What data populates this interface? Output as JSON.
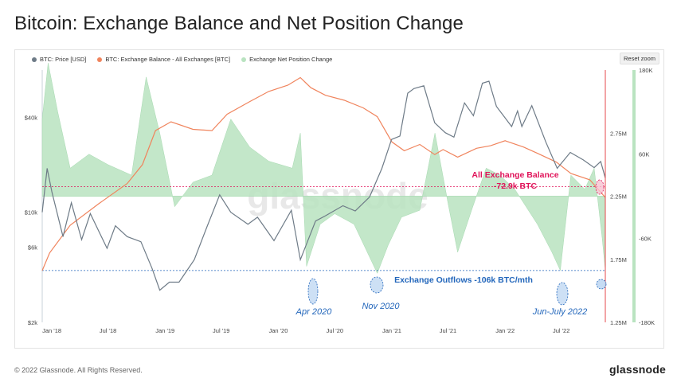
{
  "title": "Bitcoin: Exchange Balance and Net Position Change",
  "reset_zoom_label": "Reset zoom",
  "footer": "© 2022 Glassnode. All Rights Reserved.",
  "logo": "glassnode",
  "watermark": "glassnode",
  "colors": {
    "price": "#6e7b87",
    "balance": "#f0845d",
    "netpos_pos": "#b9e3c0",
    "netpos_neg": "#c9ead0",
    "right_bar": "#b9e3c0",
    "red_line": "#e5484d",
    "balance_ann": "#e0145a",
    "outflow_ann": "#2266bb"
  },
  "chart_data": {
    "type": "line",
    "legend": [
      {
        "name": "BTC: Price [USD]",
        "color": "#6e7b87",
        "style": "dot"
      },
      {
        "name": "BTC: Exchange Balance - All Exchanges [BTC]",
        "color": "#f0845d",
        "style": "dot"
      },
      {
        "name": "Exchange Net Position Change",
        "color": "#b9e3c0",
        "style": "dot"
      }
    ],
    "legend_placement": "top-left",
    "x_ticks": [
      "Jan '18",
      "Jul '18",
      "Jan '19",
      "Jul '19",
      "Jan '20",
      "Jul '20",
      "Jan '21",
      "Jul '21",
      "Jan '22",
      "Jul '22"
    ],
    "x_range": [
      "2017-12-01",
      "2022-11-20"
    ],
    "y_left": {
      "label": "",
      "scale": "log",
      "ticks": [
        "$2k",
        "$6k",
        "$10k",
        "$40k"
      ],
      "tick_values": [
        2000,
        6000,
        10000,
        40000
      ],
      "range": [
        2000,
        80000
      ]
    },
    "y_right1": {
      "label": "",
      "ticks": [
        "1.25M",
        "1.75M",
        "2.25M",
        "2.75M"
      ],
      "tick_values": [
        1250000,
        1750000,
        2250000,
        2750000
      ],
      "range": [
        1250000,
        3250000
      ]
    },
    "y_right2": {
      "label": "",
      "ticks": [
        "-180K",
        "-60K",
        "60K",
        "180K"
      ],
      "tick_values": [
        -180000,
        -60000,
        60000,
        180000
      ],
      "range": [
        -180000,
        180000
      ]
    },
    "grid": false,
    "series": [
      {
        "name": "BTC: Price [USD]",
        "axis": "left",
        "points": [
          [
            "2017-12-01",
            10000
          ],
          [
            "2017-12-17",
            19000
          ],
          [
            "2018-01-01",
            13500
          ],
          [
            "2018-02-06",
            7000
          ],
          [
            "2018-03-05",
            11500
          ],
          [
            "2018-04-07",
            6700
          ],
          [
            "2018-05-05",
            9800
          ],
          [
            "2018-06-28",
            5900
          ],
          [
            "2018-07-25",
            8200
          ],
          [
            "2018-09-01",
            7000
          ],
          [
            "2018-10-15",
            6500
          ],
          [
            "2018-11-20",
            4400
          ],
          [
            "2018-12-15",
            3200
          ],
          [
            "2019-01-15",
            3600
          ],
          [
            "2019-02-15",
            3600
          ],
          [
            "2019-04-05",
            5000
          ],
          [
            "2019-05-15",
            8000
          ],
          [
            "2019-06-26",
            12900
          ],
          [
            "2019-08-01",
            10000
          ],
          [
            "2019-09-25",
            8400
          ],
          [
            "2019-10-26",
            9300
          ],
          [
            "2019-12-18",
            6600
          ],
          [
            "2020-02-12",
            10300
          ],
          [
            "2020-03-12",
            5000
          ],
          [
            "2020-04-30",
            8800
          ],
          [
            "2020-06-01",
            9500
          ],
          [
            "2020-07-27",
            11000
          ],
          [
            "2020-09-05",
            10200
          ],
          [
            "2020-10-21",
            12500
          ],
          [
            "2020-11-30",
            19000
          ],
          [
            "2020-12-31",
            29000
          ],
          [
            "2021-01-27",
            30500
          ],
          [
            "2021-02-21",
            57000
          ],
          [
            "2021-03-13",
            61000
          ],
          [
            "2021-04-14",
            63500
          ],
          [
            "2021-05-19",
            37000
          ],
          [
            "2021-06-22",
            32000
          ],
          [
            "2021-07-20",
            30000
          ],
          [
            "2021-08-23",
            49500
          ],
          [
            "2021-09-21",
            41000
          ],
          [
            "2021-10-20",
            66000
          ],
          [
            "2021-11-10",
            68000
          ],
          [
            "2021-12-04",
            47000
          ],
          [
            "2022-01-22",
            35000
          ],
          [
            "2022-02-10",
            44000
          ],
          [
            "2022-02-24",
            35000
          ],
          [
            "2022-03-28",
            47500
          ],
          [
            "2022-05-12",
            28000
          ],
          [
            "2022-06-18",
            19000
          ],
          [
            "2022-07-30",
            24000
          ],
          [
            "2022-09-10",
            21500
          ],
          [
            "2022-10-15",
            19200
          ],
          [
            "2022-11-05",
            21000
          ],
          [
            "2022-11-20",
            16500
          ]
        ]
      },
      {
        "name": "BTC: Exchange Balance - All Exchanges [BTC]",
        "axis": "right1",
        "points": [
          [
            "2017-12-01",
            1660000
          ],
          [
            "2017-12-25",
            1800000
          ],
          [
            "2018-03-01",
            2020000
          ],
          [
            "2018-06-01",
            2190000
          ],
          [
            "2018-09-01",
            2350000
          ],
          [
            "2018-10-20",
            2500000
          ],
          [
            "2018-12-01",
            2770000
          ],
          [
            "2019-01-20",
            2840000
          ],
          [
            "2019-04-01",
            2780000
          ],
          [
            "2019-06-01",
            2770000
          ],
          [
            "2019-07-20",
            2900000
          ],
          [
            "2019-10-01",
            3000000
          ],
          [
            "2019-12-01",
            3080000
          ],
          [
            "2020-02-01",
            3130000
          ],
          [
            "2020-03-12",
            3190000
          ],
          [
            "2020-04-15",
            3110000
          ],
          [
            "2020-06-01",
            3050000
          ],
          [
            "2020-08-01",
            3010000
          ],
          [
            "2020-10-01",
            2950000
          ],
          [
            "2020-11-15",
            2880000
          ],
          [
            "2021-01-01",
            2680000
          ],
          [
            "2021-02-10",
            2610000
          ],
          [
            "2021-04-01",
            2660000
          ],
          [
            "2021-05-19",
            2580000
          ],
          [
            "2021-06-15",
            2620000
          ],
          [
            "2021-08-01",
            2560000
          ],
          [
            "2021-10-01",
            2630000
          ],
          [
            "2021-11-15",
            2650000
          ],
          [
            "2022-01-01",
            2690000
          ],
          [
            "2022-03-01",
            2640000
          ],
          [
            "2022-04-15",
            2590000
          ],
          [
            "2022-06-15",
            2520000
          ],
          [
            "2022-08-01",
            2430000
          ],
          [
            "2022-10-01",
            2380000
          ],
          [
            "2022-11-20",
            2240000
          ]
        ]
      },
      {
        "name": "Exchange Net Position Change",
        "axis": "right2",
        "style": "area",
        "points": [
          [
            "2017-12-01",
            110000
          ],
          [
            "2017-12-20",
            190000
          ],
          [
            "2018-01-20",
            120000
          ],
          [
            "2018-03-01",
            40000
          ],
          [
            "2018-05-01",
            60000
          ],
          [
            "2018-07-01",
            45000
          ],
          [
            "2018-09-15",
            30000
          ],
          [
            "2018-11-01",
            170000
          ],
          [
            "2018-12-15",
            90000
          ],
          [
            "2019-02-01",
            -15000
          ],
          [
            "2019-04-01",
            20000
          ],
          [
            "2019-06-01",
            30000
          ],
          [
            "2019-08-01",
            110000
          ],
          [
            "2019-10-01",
            70000
          ],
          [
            "2019-12-01",
            50000
          ],
          [
            "2020-02-15",
            40000
          ],
          [
            "2020-03-12",
            90000
          ],
          [
            "2020-04-01",
            -100000
          ],
          [
            "2020-05-15",
            -40000
          ],
          [
            "2020-07-01",
            -25000
          ],
          [
            "2020-09-01",
            -40000
          ],
          [
            "2020-11-15",
            -110000
          ],
          [
            "2020-12-20",
            -70000
          ],
          [
            "2021-02-01",
            -30000
          ],
          [
            "2021-04-01",
            -20000
          ],
          [
            "2021-05-20",
            90000
          ],
          [
            "2021-07-01",
            -10000
          ],
          [
            "2021-08-01",
            -80000
          ],
          [
            "2021-09-15",
            -20000
          ],
          [
            "2021-11-01",
            40000
          ],
          [
            "2021-12-15",
            30000
          ],
          [
            "2022-02-01",
            10000
          ],
          [
            "2022-04-15",
            -40000
          ],
          [
            "2022-06-01",
            -80000
          ],
          [
            "2022-06-28",
            -106000
          ],
          [
            "2022-08-01",
            30000
          ],
          [
            "2022-09-15",
            10000
          ],
          [
            "2022-10-15",
            40000
          ],
          [
            "2022-11-10",
            -60000
          ],
          [
            "2022-11-20",
            -106000
          ]
        ]
      }
    ],
    "annotations": [
      {
        "text": "All Exchange Balance",
        "text2": "-72.9k BTC",
        "color": "#e0145a"
      },
      {
        "text": "Exchange Outflows -106k BTC/mth",
        "color": "#2266bb"
      },
      {
        "text": "Apr 2020",
        "color": "#2266bb"
      },
      {
        "text": "Nov 2020",
        "color": "#2266bb"
      },
      {
        "text": "Jun-July 2022",
        "color": "#2266bb"
      }
    ],
    "reference_lines": [
      {
        "axis": "right1",
        "value": 2325000,
        "color": "#e0145a",
        "style": "dashed"
      },
      {
        "axis": "right2",
        "value": -106000,
        "color": "#2266bb",
        "style": "dashed"
      }
    ]
  }
}
